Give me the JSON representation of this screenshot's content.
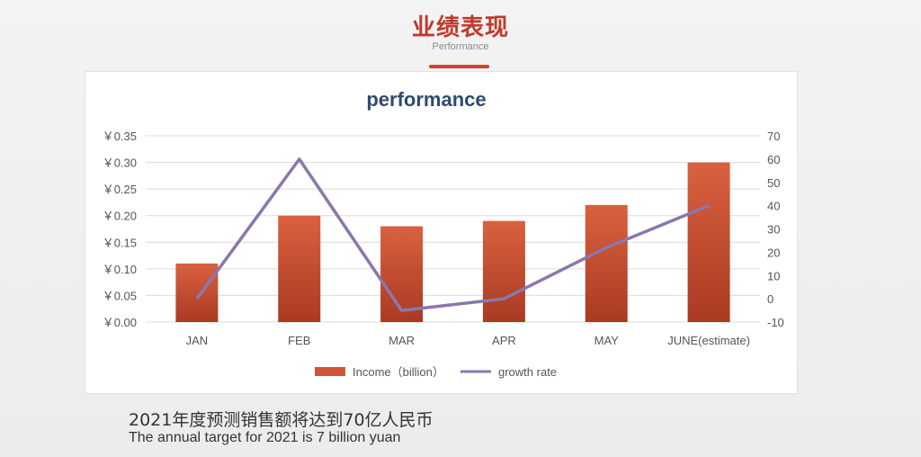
{
  "slide": {
    "title": "业绩表现",
    "subtitle": "Performance",
    "accent_color": "#c0392b"
  },
  "footer": {
    "line_cn": "2021年度预测销售额将达到70亿人民币",
    "line_en": "The annual target for 2021 is 7 billion yuan"
  },
  "chart_data": {
    "type": "bar",
    "title": "performance",
    "categories": [
      "JAN",
      "FEB",
      "MAR",
      "APR",
      "MAY",
      "JUNE(estimate)"
    ],
    "series": [
      {
        "name": "Income（billion）",
        "type": "bar",
        "axis": "left",
        "color": "#cf5538",
        "values": [
          0.11,
          0.2,
          0.18,
          0.19,
          0.22,
          0.3
        ]
      },
      {
        "name": "growth rate",
        "type": "line",
        "axis": "right",
        "color": "#8a77ad",
        "values": [
          0,
          60,
          -5,
          0,
          22,
          40
        ]
      }
    ],
    "y_left": {
      "ylim": [
        0,
        0.35
      ],
      "ticks": [
        "￥0.35",
        "￥0.30",
        "￥0.25",
        "￥0.20",
        "￥0.15",
        "￥0.10",
        "￥0.05",
        "￥0.00"
      ]
    },
    "y_right": {
      "ylim": [
        -10,
        70
      ],
      "ticks": [
        "70",
        "60",
        "50",
        "40",
        "30",
        "20",
        "10",
        "0",
        "-10"
      ]
    },
    "grid": true,
    "legend_position": "bottom"
  }
}
